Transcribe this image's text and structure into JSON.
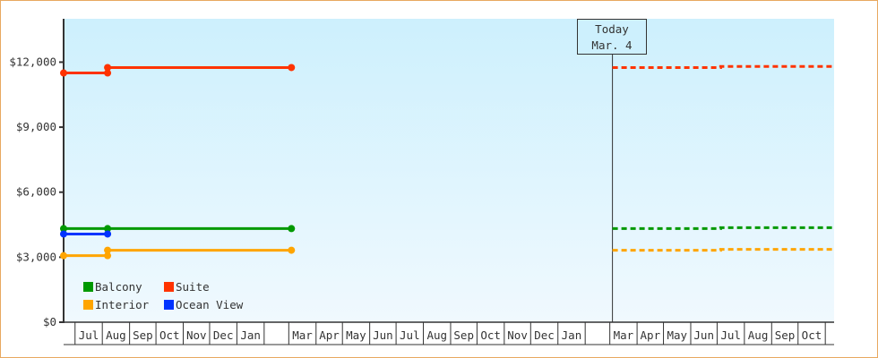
{
  "chart_data": {
    "type": "line",
    "title": "",
    "xlabel": "",
    "ylabel": "",
    "ylim": [
      0,
      14000
    ],
    "y_ticks": [
      "$0",
      "$3,000",
      "$6,000",
      "$9,000",
      "$12,000"
    ],
    "y_tick_values": [
      0,
      3000,
      6000,
      9000,
      12000
    ],
    "x_start": "Jun 18",
    "x_end": "Nov 11",
    "x_month_labels": [
      "",
      "Jul",
      "Aug",
      "Sep",
      "Oct",
      "Nov",
      "Dec",
      "Jan",
      "",
      "Mar",
      "Apr",
      "May",
      "Jun",
      "Jul",
      "Aug",
      "Sep",
      "Oct",
      "Nov",
      "Dec",
      "Jan",
      "",
      "Mar",
      "Apr",
      "May",
      "Jun",
      "Jul",
      "Aug",
      "Sep",
      "Oct"
    ],
    "today": {
      "line1": "Today",
      "line2": "Mar. 4",
      "date": "Mar 4"
    },
    "legend_position": "bottom-left",
    "grid": false,
    "series": [
      {
        "name": "Balcony",
        "color": "#009900",
        "points": [
          [
            "Jun 18",
            4320
          ],
          [
            "Aug 7",
            4320
          ],
          [
            "Mar 4",
            4320
          ]
        ],
        "projection": [
          [
            "Mar 4",
            4320
          ],
          [
            "Jul 5",
            4320
          ],
          [
            "Jul 5",
            4360
          ],
          [
            "Nov 11",
            4360
          ]
        ]
      },
      {
        "name": "Suite",
        "color": "#ff3300",
        "points": [
          [
            "Jun 18",
            11500
          ],
          [
            "Aug 7",
            11500
          ],
          [
            "Aug 7",
            11750
          ],
          [
            "Mar 4",
            11750
          ]
        ],
        "projection": [
          [
            "Mar 4",
            11750
          ],
          [
            "Jul 5",
            11750
          ],
          [
            "Jul 5",
            11800
          ],
          [
            "Nov 11",
            11800
          ]
        ]
      },
      {
        "name": "Interior",
        "color": "#ffa500",
        "points": [
          [
            "Jun 18",
            3070
          ],
          [
            "Aug 7",
            3070
          ],
          [
            "Aug 7",
            3320
          ],
          [
            "Mar 4",
            3320
          ]
        ],
        "projection": [
          [
            "Mar 4",
            3320
          ],
          [
            "Jul 5",
            3320
          ],
          [
            "Jul 5",
            3360
          ],
          [
            "Nov 11",
            3360
          ]
        ]
      },
      {
        "name": "Ocean View",
        "color": "#0033ff",
        "points": [
          [
            "Jun 18",
            4070
          ],
          [
            "Aug 7",
            4070
          ]
        ],
        "projection": []
      }
    ]
  }
}
